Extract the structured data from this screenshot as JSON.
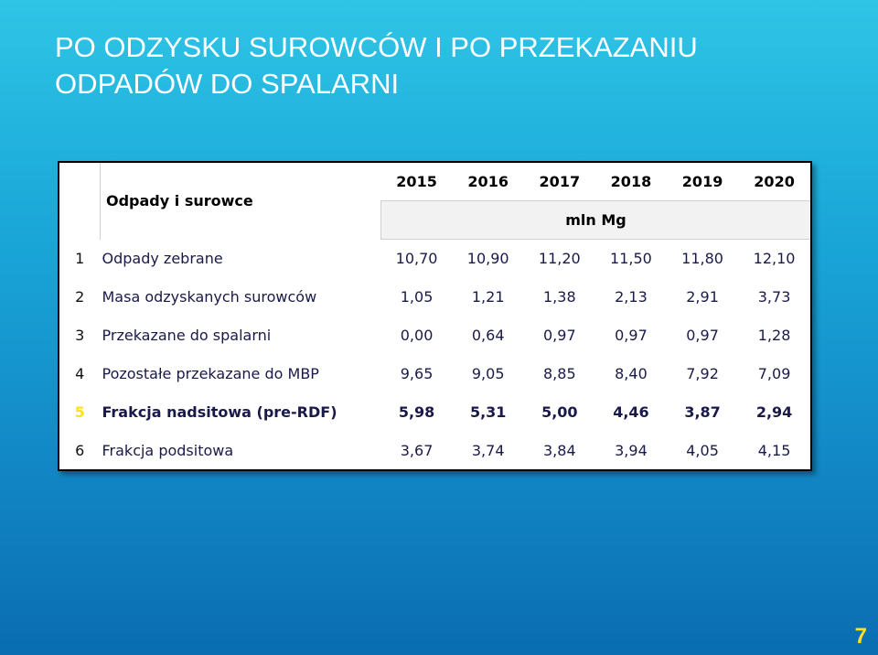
{
  "slide": {
    "title_line1": "PO ODZYSKU SUROWCÓW I PO PRZEKAZANIU",
    "title_line2": "ODPADÓW DO SPALARNI",
    "page_number": "7"
  },
  "table": {
    "header_label": "Odpady i surowce",
    "years": [
      "2015",
      "2016",
      "2017",
      "2018",
      "2019",
      "2020"
    ],
    "unit": "mln Mg",
    "rows": [
      {
        "num": "1",
        "label": "Odpady zebrane",
        "values": [
          "10,70",
          "10,90",
          "11,20",
          "11,50",
          "11,80",
          "12,10"
        ]
      },
      {
        "num": "2",
        "label": "Masa odzyskanych surowców",
        "values": [
          "1,05",
          "1,21",
          "1,38",
          "2,13",
          "2,91",
          "3,73"
        ]
      },
      {
        "num": "3",
        "label": "Przekazane do spalarni",
        "values": [
          "0,00",
          "0,64",
          "0,97",
          "0,97",
          "0,97",
          "1,28"
        ]
      },
      {
        "num": "4",
        "label": "Pozostałe przekazane do MBP",
        "values": [
          "9,65",
          "9,05",
          "8,85",
          "8,40",
          "7,92",
          "7,09"
        ]
      },
      {
        "num": "5",
        "label": "Frakcja nadsitowa (pre-RDF)",
        "values": [
          "5,98",
          "5,31",
          "5,00",
          "4,46",
          "3,87",
          "2,94"
        ]
      },
      {
        "num": "6",
        "label": "Frakcja podsitowa",
        "values": [
          "3,67",
          "3,74",
          "3,84",
          "3,94",
          "4,05",
          "4,15"
        ]
      }
    ]
  },
  "colors": {
    "background_top": "#2fc5e6",
    "background_bottom": "#0a6db1",
    "title": "#ffffff",
    "page_number": "#ffe21a",
    "highlight_number": "#ffe21a"
  }
}
